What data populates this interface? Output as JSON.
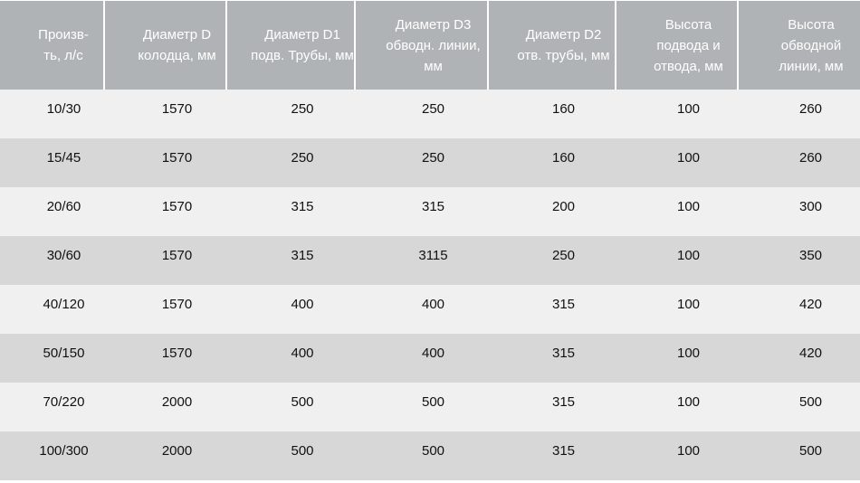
{
  "table": {
    "headers": [
      [
        "Произв-",
        "ть, л/с"
      ],
      [
        "Диаметр D",
        "колодца, мм"
      ],
      [
        "Диаметр D1",
        "подв. Трубы, мм"
      ],
      [
        "Диаметр D3",
        "обводн. линии,",
        "мм"
      ],
      [
        "Диаметр D2",
        "отв. трубы, мм"
      ],
      [
        "Высота",
        "подвода и",
        "отвода, мм"
      ],
      [
        "Высота",
        "обводной",
        "линии, мм"
      ]
    ],
    "rows": [
      [
        "10/30",
        "1570",
        "250",
        "250",
        "160",
        "100",
        "260"
      ],
      [
        "15/45",
        "1570",
        "250",
        "250",
        "160",
        "100",
        "260"
      ],
      [
        "20/60",
        "1570",
        "315",
        "315",
        "200",
        "100",
        "300"
      ],
      [
        "30/60",
        "1570",
        "315",
        "3115",
        "250",
        "100",
        "350"
      ],
      [
        "40/120",
        "1570",
        "400",
        "400",
        "315",
        "100",
        "420"
      ],
      [
        "50/150",
        "1570",
        "400",
        "400",
        "315",
        "100",
        "420"
      ],
      [
        "70/220",
        "2000",
        "500",
        "500",
        "315",
        "100",
        "500"
      ],
      [
        "100/300",
        "2000",
        "500",
        "500",
        "315",
        "100",
        "500"
      ]
    ]
  },
  "colors": {
    "header_bg": "#b0b3b6",
    "row_light": "#f0f0f0",
    "row_dark": "#d7d7d7"
  }
}
